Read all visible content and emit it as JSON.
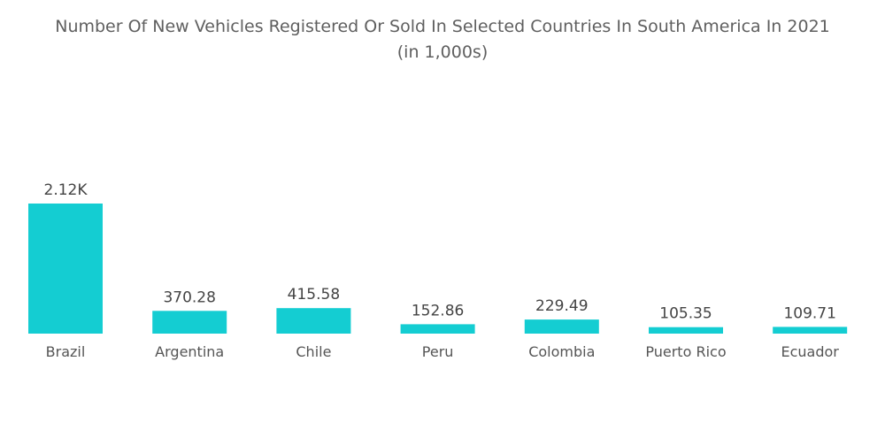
{
  "chart_data": {
    "type": "bar",
    "title": "Number Of New Vehicles Registered Or Sold In Selected Countries In South America In 2021",
    "subtitle": "(in 1,000s)",
    "categories": [
      "Brazil",
      "Argentina",
      "Chile",
      "Peru",
      "Colombia",
      "Puerto Rico",
      "Ecuador"
    ],
    "values": [
      2120,
      370.28,
      415.58,
      152.86,
      229.49,
      105.35,
      109.71
    ],
    "value_labels": [
      "2.12K",
      "370.28",
      "415.58",
      "152.86",
      "229.49",
      "105.35",
      "109.71"
    ],
    "xlabel": "",
    "ylabel": "",
    "ylim": [
      0,
      2120
    ],
    "grid": false,
    "legend": "none",
    "bar_color": "#14CDD2"
  }
}
